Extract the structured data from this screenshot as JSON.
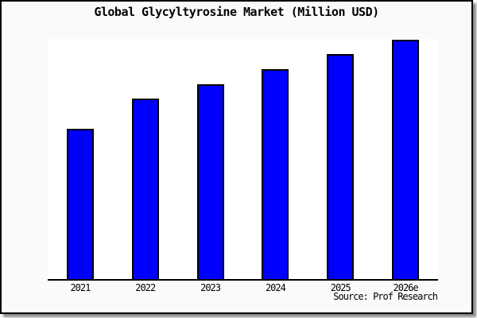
{
  "chart_data": {
    "type": "bar",
    "title": "Global Glycyltyrosine Market (Million USD)",
    "categories": [
      "2021",
      "2022",
      "2023",
      "2024",
      "2025",
      "2026e"
    ],
    "values": [
      189,
      227,
      245,
      264,
      283,
      301
    ],
    "xlabel": "",
    "ylabel": "",
    "ylim": [
      0,
      302
    ],
    "grid": false,
    "legend": false,
    "y_axis_labels_visible": false,
    "bar_color": "#0000ff",
    "bar_edge_color": "#000000",
    "plot_background": "#ffffff",
    "page_background": "#fafafa",
    "axis_color": "#000000",
    "source_note": "Source: Prof Research"
  }
}
